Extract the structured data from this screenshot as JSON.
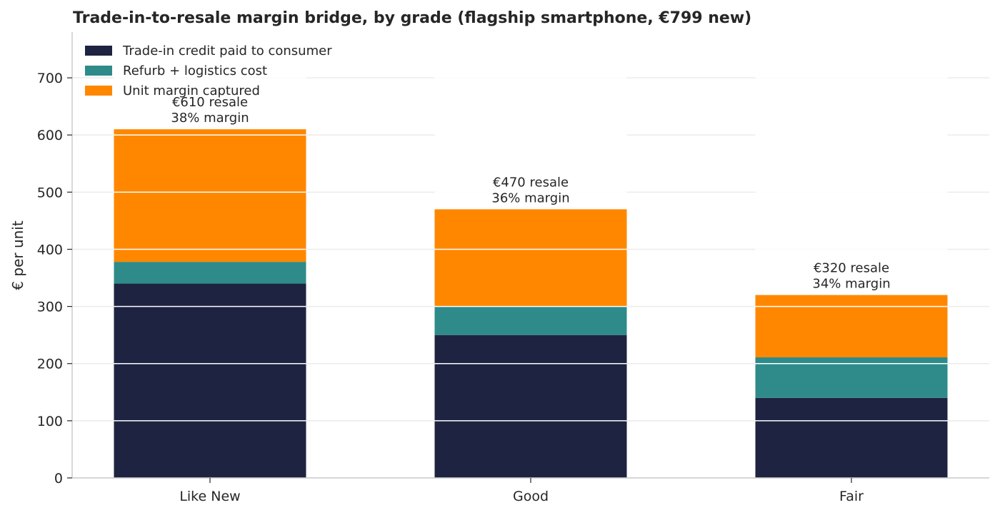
{
  "chart_data": {
    "type": "bar",
    "stacked": true,
    "title": "Trade-in-to-resale margin bridge, by grade (flagship smartphone, €799 new)",
    "xlabel": "",
    "ylabel": "€ per unit",
    "ylim": [
      0,
      780
    ],
    "yticks": [
      0,
      100,
      200,
      300,
      400,
      500,
      600,
      700
    ],
    "grid": true,
    "legend_position": "top-left",
    "categories": [
      "Like New",
      "Good",
      "Fair"
    ],
    "series": [
      {
        "name": "Trade-in credit paid to consumer",
        "color": "#1e2341",
        "values": [
          340,
          250,
          140
        ]
      },
      {
        "name": "Refurb + logistics cost",
        "color": "#2e8b8a",
        "values": [
          38,
          50,
          71
        ]
      },
      {
        "name": "Unit margin captured",
        "color": "#ff8700",
        "values": [
          232,
          170,
          109
        ]
      }
    ],
    "annotations": [
      {
        "category": "Like New",
        "value": 610,
        "line1": "€610 resale",
        "line2": "38% margin"
      },
      {
        "category": "Good",
        "value": 470,
        "line1": "€470 resale",
        "line2": "36% margin"
      },
      {
        "category": "Fair",
        "value": 320,
        "line1": "€320 resale",
        "line2": "34% margin"
      }
    ]
  }
}
